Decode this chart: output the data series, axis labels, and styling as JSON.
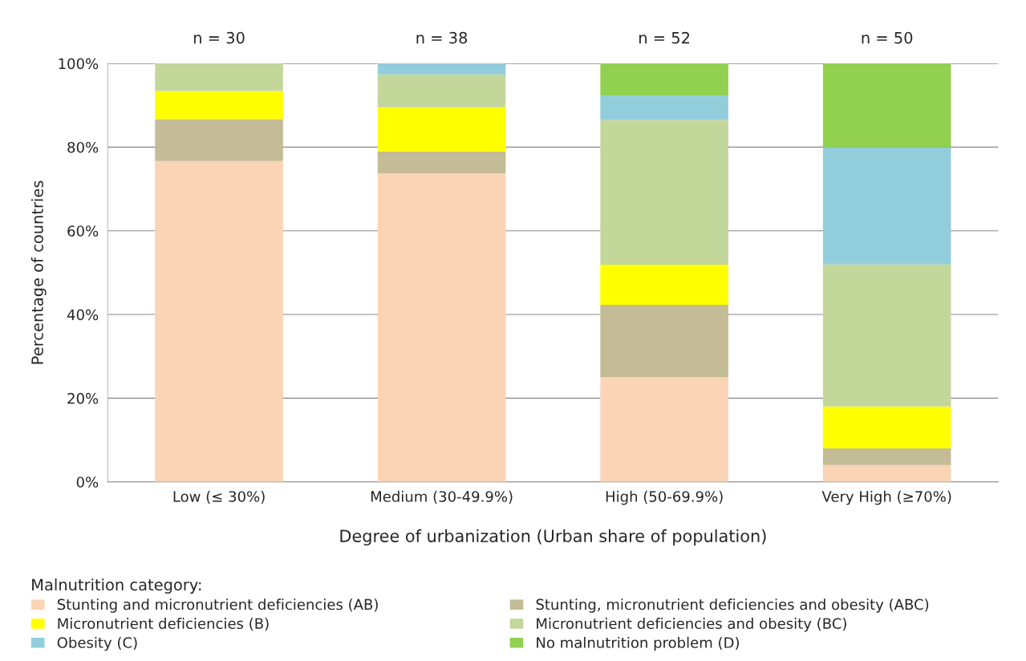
{
  "chart_data": {
    "type": "bar",
    "stacked": true,
    "xlabel": "Degree of urbanization (Urban share of population)",
    "ylabel": "Percentage of countries",
    "legend_title": "Malnutrition category:",
    "categories": [
      "Low (≤ 30%)",
      "Medium (30-49.9%)",
      "High (50-69.9%)",
      "Very High (≥70%)"
    ],
    "series": [
      {
        "name": "Stunting and micronutrient deficiencies (AB)",
        "color": "#fad4b4",
        "values": [
          76.7,
          73.7,
          25.0,
          4.0
        ]
      },
      {
        "name": "Stunting, micronutrient deficiencies and obesity (ABC)",
        "color": "#c4bc96",
        "values": [
          10.0,
          5.3,
          17.3,
          4.0
        ]
      },
      {
        "name": "Micronutrient deficiencies (B)",
        "color": "#ffff00",
        "values": [
          6.7,
          10.5,
          9.6,
          10.0
        ]
      },
      {
        "name": "Micronutrient deficiencies and obesity (BC)",
        "color": "#c4d79b",
        "values": [
          6.7,
          7.9,
          34.6,
          34.0
        ]
      },
      {
        "name": "Obesity (C)",
        "color": "#92cddc",
        "values": [
          null,
          2.6,
          5.8,
          28.0
        ]
      },
      {
        "name": "No malnutrition problem (D)",
        "color": "#92d050",
        "values": [
          null,
          null,
          7.7,
          20.0
        ]
      }
    ],
    "ylim": [
      0,
      100
    ],
    "yticks": [
      {
        "value": 0,
        "label": "0%"
      },
      {
        "value": 20,
        "label": "20%"
      },
      {
        "value": 40,
        "label": "40%"
      },
      {
        "value": 60,
        "label": "60%"
      },
      {
        "value": 80,
        "label": "80%"
      },
      {
        "value": 100,
        "label": "100%"
      }
    ],
    "grid": "y",
    "legend": "bottom",
    "annotations": [
      "n = 30",
      "n = 38",
      "n = 52",
      "n = 50"
    ]
  }
}
